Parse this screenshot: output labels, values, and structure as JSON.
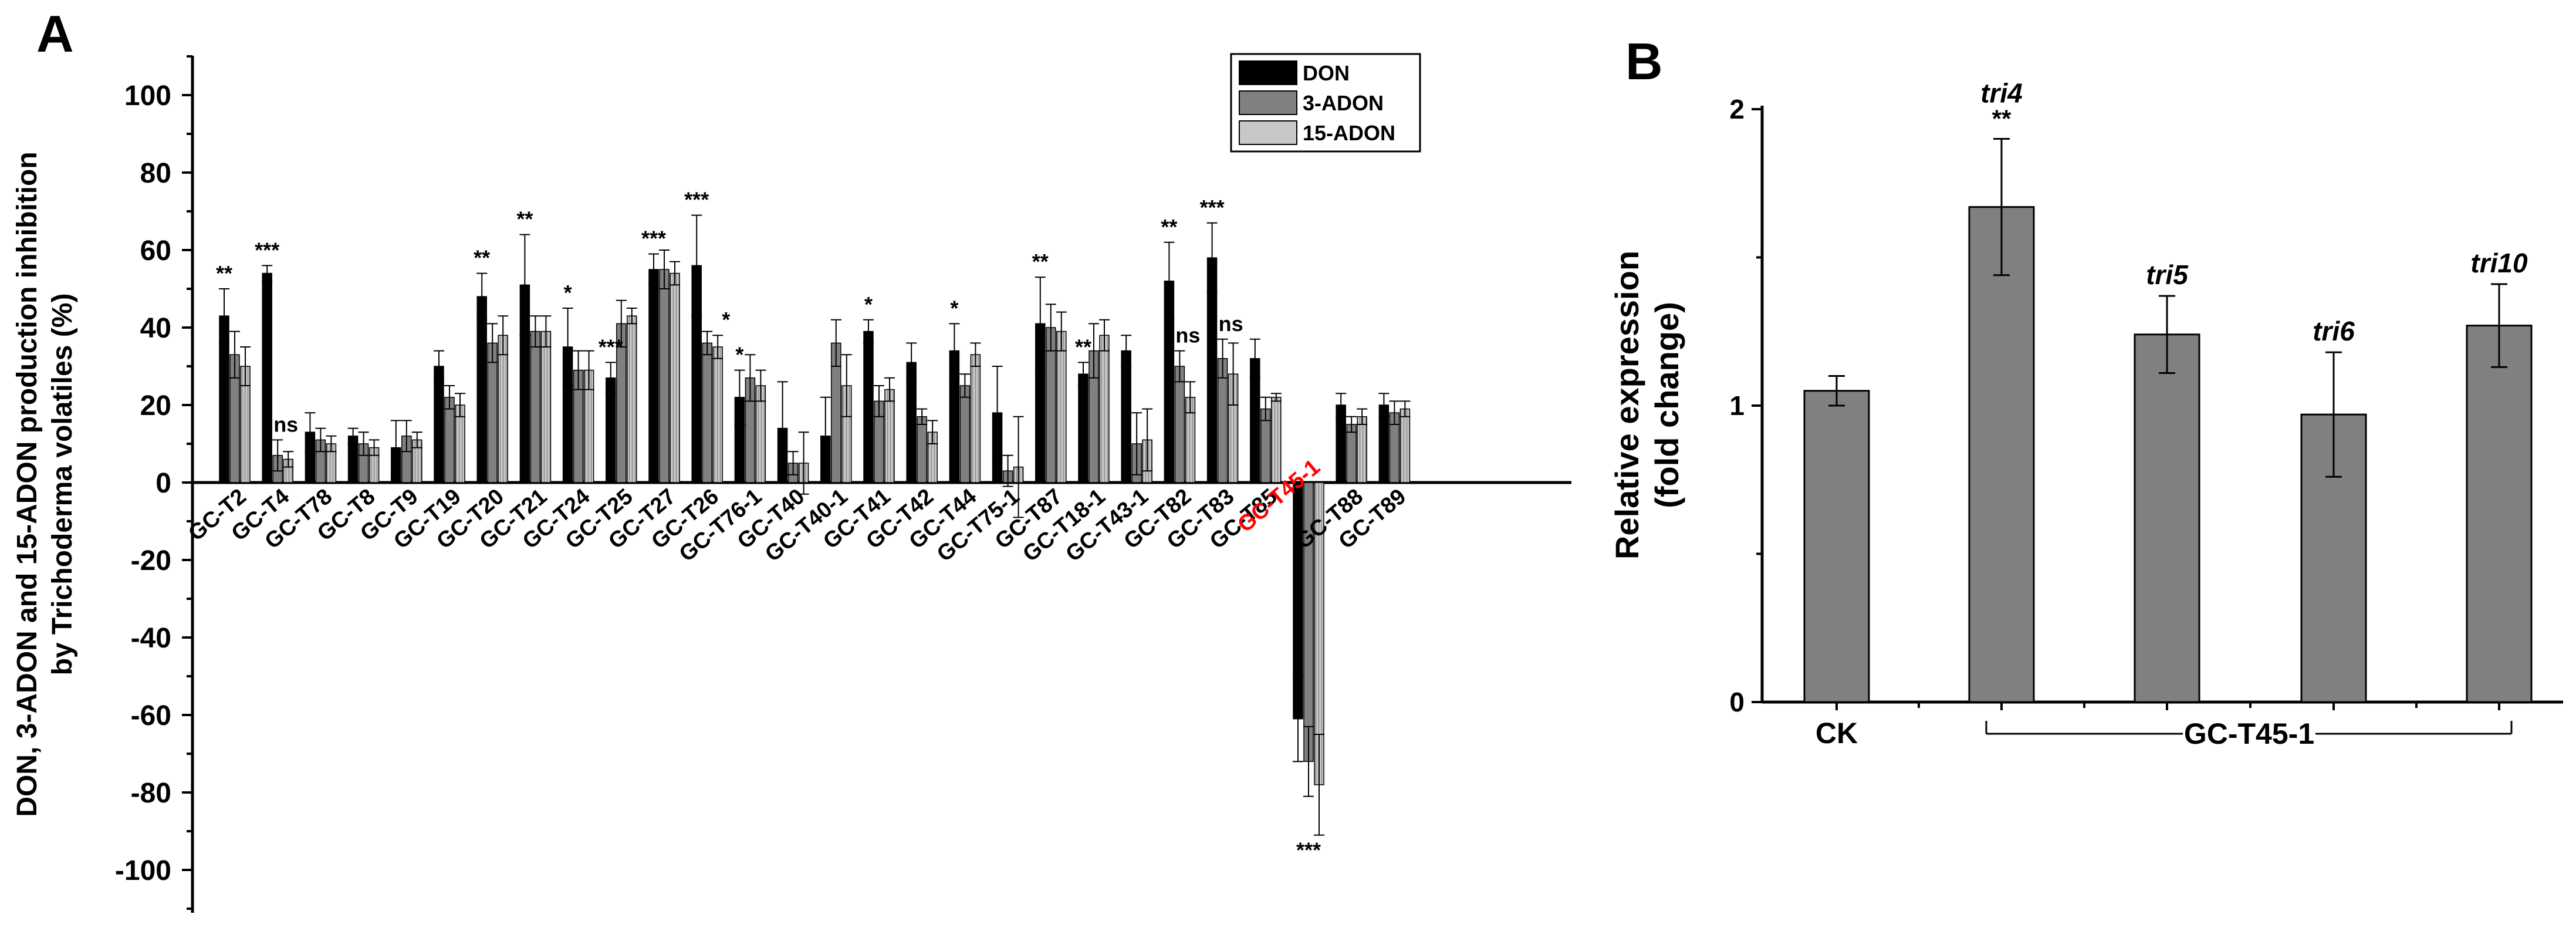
{
  "chart_data": [
    {
      "panel_label": "A",
      "type": "bar",
      "ylabel_lines": [
        "DON, 3-ADON and 15-ADON production inhibition",
        "by Trichoderma volatiles (%)"
      ],
      "xlabel": "",
      "ylim": [
        -110,
        110
      ],
      "yticks": [
        -100,
        -80,
        -60,
        -40,
        -20,
        0,
        20,
        40,
        60,
        80,
        100
      ],
      "legend_position": "top-right",
      "highlight_category": "GC-T45-1",
      "highlight_color": "#ff0000",
      "categories": [
        "GC-T2",
        "GC-T4",
        "GC-T78",
        "GC-T8",
        "GC-T9",
        "GC-T19",
        "GC-T20",
        "GC-T21",
        "GC-T24",
        "GC-T25",
        "GC-T27",
        "GC-T26",
        "GC-T76-1",
        "GC-T40",
        "GC-T40-1",
        "GC-T41",
        "GC-T42",
        "GC-T44",
        "GC-T75-1",
        "GC-T87",
        "GC-T18-1",
        "GC-T43-1",
        "GC-T82",
        "GC-T83",
        "GC-T85",
        "GC-T45-1",
        "GC-T88",
        "GC-T89"
      ],
      "significance": [
        "**",
        "***",
        "",
        "",
        "",
        "",
        "**",
        "**",
        "*",
        "***",
        "***",
        "***",
        "*",
        "",
        "",
        "*",
        "",
        "*",
        "",
        "**",
        "**",
        "",
        "**",
        "***",
        "",
        "***",
        "",
        ""
      ],
      "extra_annotations": [
        {
          "category": "GC-T4",
          "series": "3-ADON",
          "text": "ns"
        },
        {
          "category": "GC-T26",
          "series": "15-ADON",
          "text": "*"
        },
        {
          "category": "GC-T82",
          "series": "3-ADON",
          "text": "ns"
        },
        {
          "category": "GC-T83",
          "series": "3-ADON",
          "text": "ns"
        }
      ],
      "series": [
        {
          "name": "DON",
          "color": "#000000",
          "pattern": "solid",
          "values": [
            43,
            54,
            13,
            12,
            9,
            30,
            48,
            51,
            35,
            27,
            55,
            56,
            22,
            14,
            12,
            39,
            31,
            34,
            18,
            41,
            28,
            34,
            52,
            58,
            32,
            -61,
            20,
            20
          ],
          "errors": [
            7,
            2,
            5,
            2,
            7,
            4,
            6,
            13,
            10,
            4,
            4,
            13,
            7,
            12,
            10,
            3,
            5,
            7,
            12,
            12,
            3,
            4,
            10,
            9,
            5,
            11,
            3,
            3
          ]
        },
        {
          "name": "3-ADON",
          "color": "#808080",
          "pattern": "solid",
          "values": [
            33,
            7,
            11,
            10,
            12,
            22,
            36,
            39,
            29,
            41,
            55,
            36,
            27,
            5,
            36,
            21,
            17,
            25,
            3,
            40,
            34,
            10,
            30,
            32,
            19,
            -72,
            15,
            18
          ],
          "errors": [
            6,
            4,
            3,
            3,
            4,
            3,
            5,
            4,
            5,
            6,
            5,
            3,
            6,
            3,
            6,
            4,
            2,
            3,
            4,
            6,
            7,
            8,
            4,
            5,
            3,
            9,
            2,
            3
          ]
        },
        {
          "name": "15-ADON",
          "color": "#c8c8c8",
          "pattern": "hatched",
          "values": [
            30,
            6,
            10,
            9,
            11,
            20,
            38,
            39,
            29,
            43,
            54,
            35,
            25,
            5,
            25,
            24,
            13,
            33,
            4,
            39,
            38,
            11,
            22,
            28,
            22,
            -78,
            17,
            19
          ],
          "errors": [
            5,
            2,
            2,
            2,
            2,
            3,
            5,
            4,
            5,
            2,
            3,
            3,
            4,
            8,
            8,
            3,
            3,
            3,
            13,
            5,
            4,
            8,
            4,
            8,
            1,
            13,
            2,
            2
          ]
        }
      ]
    },
    {
      "panel_label": "B",
      "type": "bar",
      "ylabel_lines": [
        "Relative expression",
        "(fold change)"
      ],
      "xlabel": "",
      "ylim": [
        0,
        2
      ],
      "yticks": [
        0,
        1,
        2
      ],
      "categories": [
        "CK",
        "tri4",
        "tri5",
        "tri6",
        "tri10"
      ],
      "values": [
        1.05,
        1.67,
        1.24,
        0.97,
        1.27
      ],
      "errors": [
        0.05,
        0.23,
        0.13,
        0.21,
        0.14
      ],
      "bar_labels": [
        "",
        "tri4",
        "tri5",
        "tri6",
        "tri10"
      ],
      "significance": [
        "",
        "**",
        "",
        "",
        ""
      ],
      "x_tick_labels": [
        "CK"
      ],
      "group_label": "GC-T45-1",
      "bar_color": "#808080"
    }
  ]
}
